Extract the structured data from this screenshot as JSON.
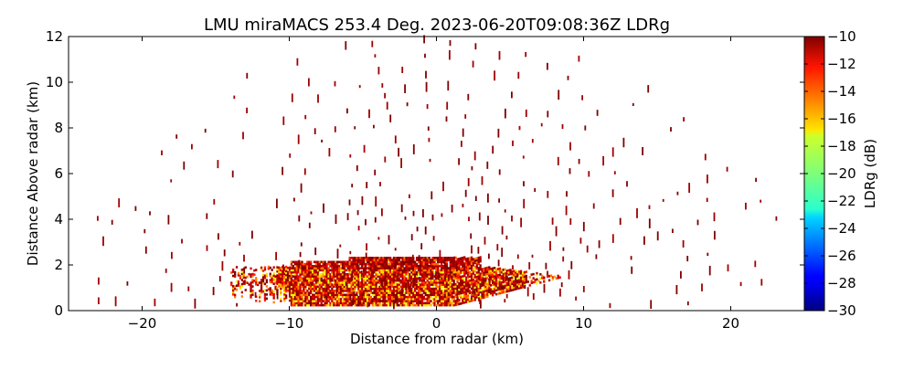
{
  "chart_data": {
    "type": "heatmap",
    "title": "LMU miraMACS 253.4 Deg. 2023-06-20T09:08:36Z  LDRg",
    "xlabel": "Distance from radar (km)",
    "ylabel": "Distance Above radar  (km)",
    "xlim": [
      -25,
      25
    ],
    "ylim": [
      0,
      12
    ],
    "x_ticks": [
      -20,
      -10,
      0,
      10,
      20
    ],
    "y_ticks": [
      0,
      2,
      4,
      6,
      8,
      10,
      12
    ],
    "x_tick_labels": [
      "−20",
      "−10",
      "0",
      "10",
      "20"
    ],
    "y_tick_labels": [
      "0",
      "2",
      "4",
      "6",
      "8",
      "10",
      "12"
    ],
    "grid": false,
    "colorbar": {
      "label": "LDRg (dB)",
      "range": [
        -30,
        -10
      ],
      "ticks": [
        -10,
        -12,
        -14,
        -16,
        -18,
        -20,
        -22,
        -24,
        -26,
        -28,
        -30
      ],
      "tick_labels": [
        "−10",
        "−12",
        "−14",
        "−16",
        "−18",
        "−20",
        "−22",
        "−24",
        "−26",
        "−28",
        "−30"
      ],
      "colormap": "jet"
    },
    "field_description": {
      "dense_layer_x_range_km": [
        -14,
        9
      ],
      "dense_layer_height_km": [
        0,
        2.3
      ],
      "dominant_value_dB": -10,
      "sparse_echo_value_dB": -10
    }
  }
}
